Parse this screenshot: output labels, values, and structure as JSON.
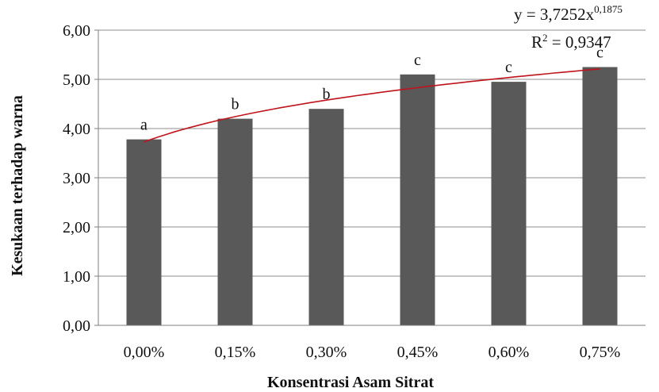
{
  "chart_data": {
    "type": "bar",
    "categories": [
      "0,00%",
      "0,15%",
      "0,30%",
      "0,45%",
      "0,60%",
      "0,75%"
    ],
    "values": [
      3.78,
      4.2,
      4.4,
      5.1,
      4.95,
      5.25
    ],
    "significance_labels": [
      "a",
      "b",
      "b",
      "c",
      "c",
      "c"
    ],
    "xlabel": "Konsentrasi Asam Sitrat",
    "ylabel": "Kesukaan terhadap warna",
    "ylim": [
      0,
      6
    ],
    "yticks": [
      "0,00",
      "1,00",
      "2,00",
      "3,00",
      "4,00",
      "5,00",
      "6,00"
    ],
    "grid": true,
    "bar_color": "#595959",
    "trendline": {
      "type": "power",
      "a": 3.7252,
      "b": 0.1875,
      "color": "#c0141c",
      "equation_text": "y = 3,7252x",
      "equation_exponent": "0,1875",
      "r2_prefix": "R",
      "r2_sup": "2",
      "r2_suffix": " = 0,9347"
    }
  }
}
